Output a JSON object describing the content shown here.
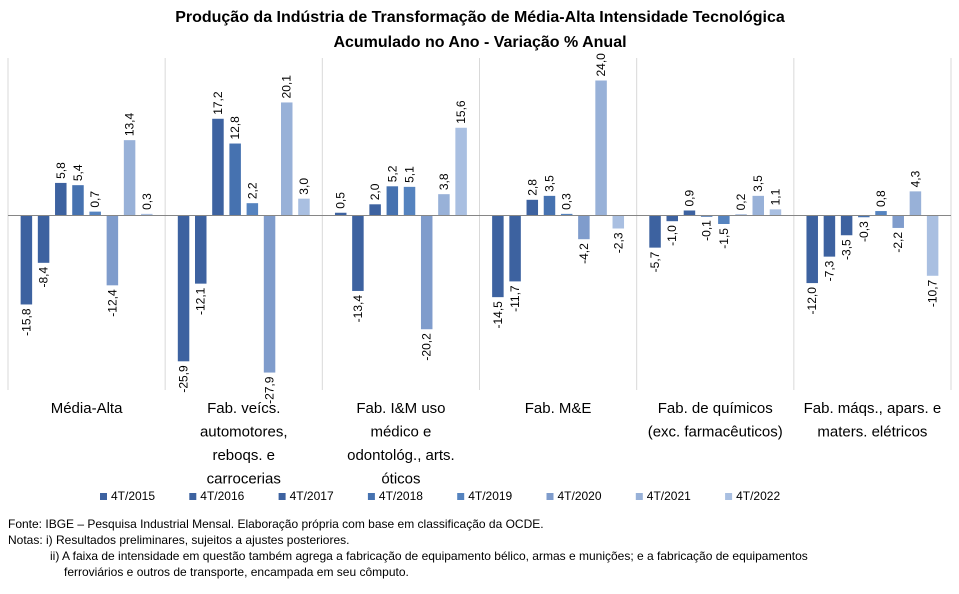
{
  "chart_data": {
    "type": "bar",
    "title": "Produção da Indústria de Transformação de Média-Alta Intensidade Tecnológica",
    "subtitle": "Acumulado no Ano - Variação % Anual",
    "categories": [
      [
        "Média-Alta"
      ],
      [
        "Fab. veícs.",
        "automotores,",
        "reboqs. e",
        "carrocerias"
      ],
      [
        "Fab. I&M uso",
        "médico e",
        "odontológ., arts.",
        "óticos"
      ],
      [
        "Fab. M&E"
      ],
      [
        "Fab. de químicos",
        "(exc. farmacêuticos)"
      ],
      [
        "Fab. máqs., apars. e",
        "maters. elétricos"
      ]
    ],
    "series": [
      {
        "name": "4T/2015",
        "color": "#3d62a0",
        "values": [
          -15.8,
          -25.9,
          0.5,
          -14.5,
          -5.7,
          -12.0
        ]
      },
      {
        "name": "4T/2016",
        "color": "#3d62a0",
        "values": [
          -8.4,
          -12.1,
          -13.4,
          -11.7,
          -1.0,
          -7.3
        ]
      },
      {
        "name": "4T/2017",
        "color": "#3d62a0",
        "values": [
          5.8,
          17.2,
          2.0,
          2.8,
          0.9,
          -3.5
        ]
      },
      {
        "name": "4T/2018",
        "color": "#4672b0",
        "values": [
          5.4,
          12.8,
          5.2,
          3.5,
          -0.1,
          -0.3
        ]
      },
      {
        "name": "4T/2019",
        "color": "#5583bf",
        "values": [
          0.7,
          2.2,
          5.1,
          0.3,
          -1.5,
          0.8
        ]
      },
      {
        "name": "4T/2020",
        "color": "#7f9ccc",
        "values": [
          -12.4,
          -27.9,
          -20.2,
          -4.2,
          0.2,
          -2.2
        ]
      },
      {
        "name": "4T/2021",
        "color": "#98b1d8",
        "values": [
          13.4,
          20.1,
          3.8,
          24.0,
          3.5,
          4.3
        ]
      },
      {
        "name": "4T/2022",
        "color": "#a9bfe1",
        "values": [
          0.3,
          3.0,
          15.6,
          -2.3,
          1.1,
          -10.7
        ]
      }
    ],
    "value_labels": [
      [
        "-15,8",
        "-8,4",
        "5,8",
        "5,4",
        "0,7",
        "-12,4",
        "13,4",
        "0,3"
      ],
      [
        "-25,9",
        "-12,1",
        "17,2",
        "12,8",
        "2,2",
        "-27,9",
        "20,1",
        "3,0"
      ],
      [
        "0,5",
        "-13,4",
        "2,0",
        "5,2",
        "5,1",
        "-20,2",
        "3,8",
        "15,6"
      ],
      [
        "-14,5",
        "-11,7",
        "2,8",
        "3,5",
        "0,3",
        "-4,2",
        "24,0",
        "-2,3"
      ],
      [
        "-5,7",
        "-1,0",
        "0,9",
        "-0,1",
        "-1,5",
        "0,2",
        "3,5",
        "1,1"
      ],
      [
        "-12,0",
        "-7,3",
        "-3,5",
        "-0,3",
        "0,8",
        "-2,2",
        "4,3",
        "-10,7"
      ]
    ],
    "ylim": [
      -31,
      28
    ],
    "grid": false,
    "legend": "bottom"
  },
  "notes": {
    "source": "Fonte: IBGE – Pesquisa Industrial Mensal. Elaboração própria com base em classificação da OCDE.",
    "note1": "Notas: i) Resultados preliminares, sujeitos a ajustes posteriores.",
    "note2a": "ii) A faixa de intensidade em questão também agrega a fabricação de equipamento bélico, armas e munições; e a fabricação de equipamentos",
    "note2b": "ferroviários e outros de transporte, encampada em seu cômputo."
  }
}
